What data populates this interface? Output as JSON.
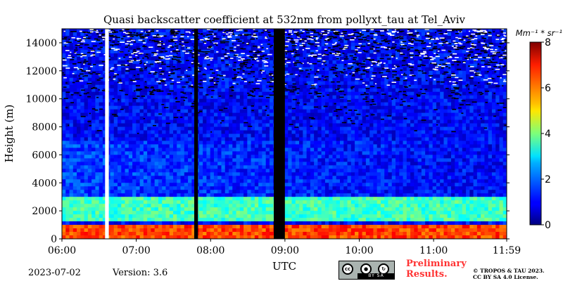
{
  "chart_data": {
    "type": "heatmap",
    "title": "Quasi backscatter coefficient at 532nm from pollyxt_tau at Tel_Aviv",
    "xlabel": "UTC",
    "ylabel": "Height (m)",
    "x_ticks": [
      "06:00",
      "07:00",
      "08:00",
      "09:00",
      "10:00",
      "11:00",
      "11:59"
    ],
    "x_range_hours": [
      6.0,
      11.9833
    ],
    "y_ticks": [
      0,
      2000,
      4000,
      6000,
      8000,
      10000,
      12000,
      14000
    ],
    "ylim": [
      0,
      15000
    ],
    "colorbar": {
      "unit_label": "Mm⁻¹ * sr⁻¹",
      "ticks": [
        0,
        2,
        4,
        6,
        8
      ],
      "range": [
        0,
        8
      ],
      "colormap": "jet"
    },
    "data_gaps_hours": [
      [
        6.58,
        6.63
      ],
      [
        7.78,
        7.83
      ],
      [
        8.85,
        9.0
      ]
    ],
    "layers": [
      {
        "base_m": 0,
        "top_m": 900,
        "typical_value": 6.5
      },
      {
        "base_m": 1200,
        "top_m": 3000,
        "typical_value": 3.5
      },
      {
        "base_m": 3000,
        "top_m": 7000,
        "typical_value": 1.5
      },
      {
        "base_m": 7000,
        "top_m": 15000,
        "typical_value": 1.0
      }
    ]
  },
  "footer": {
    "date": "2023-07-02",
    "version": "Version: 3.6",
    "preliminary": "Preliminary Results.",
    "copyright_line1": "© TROPOS & TAU 2023.",
    "copyright_line2": "CC BY SA 4.0 License."
  },
  "license_badge": {
    "text": "BY  SA",
    "icon_left": "cc-icon",
    "icon_mid": "by-icon",
    "icon_right": "sa-icon"
  },
  "colors": {
    "gap": "#000000",
    "noise": "#000000",
    "missing": "#ffffff",
    "preliminary": "#ff3333"
  }
}
